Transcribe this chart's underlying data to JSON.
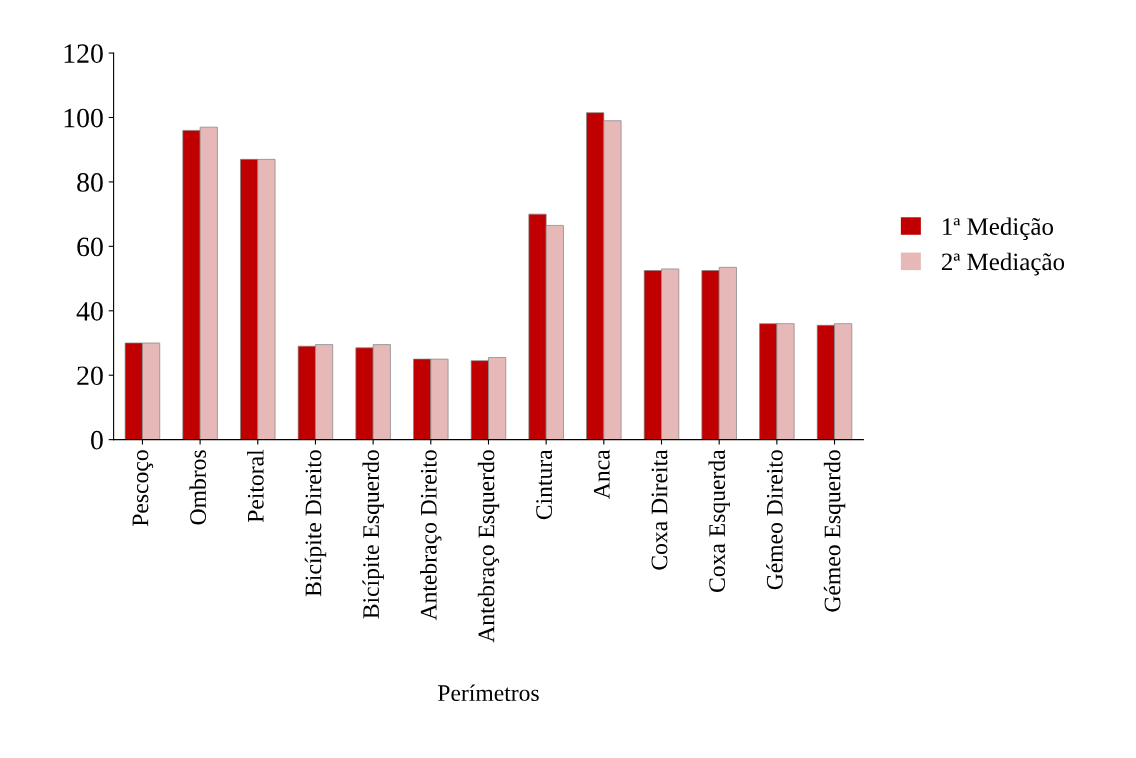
{
  "chart_data": {
    "type": "bar",
    "xlabel": "Perímetros",
    "categories": [
      "Pescoço",
      "Ombros",
      "Peitoral",
      "Bicípite Direito",
      "Bicípite Esquerdo",
      "Antebraço Direito",
      "Antebraço Esquerdo",
      "Cintura",
      "Anca",
      "Coxa Direita",
      "Coxa Esquerda",
      "Gémeo Direito",
      "Gémeo Esquerdo"
    ],
    "series": [
      {
        "name": "1ª Medição",
        "color": "#c00000",
        "values": [
          30,
          96,
          87,
          29,
          28.5,
          25,
          24.5,
          70,
          101.5,
          52.5,
          52.5,
          36,
          35.5
        ]
      },
      {
        "name": "2ª Mediação",
        "color": "#e6b9b8",
        "values": [
          30,
          97,
          87,
          29.5,
          29.5,
          25,
          25.5,
          66.5,
          99,
          53,
          53.5,
          36,
          36
        ]
      }
    ],
    "ylim": [
      0,
      120
    ],
    "yticks": [
      0,
      20,
      40,
      60,
      80,
      100,
      120
    ],
    "grid": false,
    "legend": "right"
  }
}
